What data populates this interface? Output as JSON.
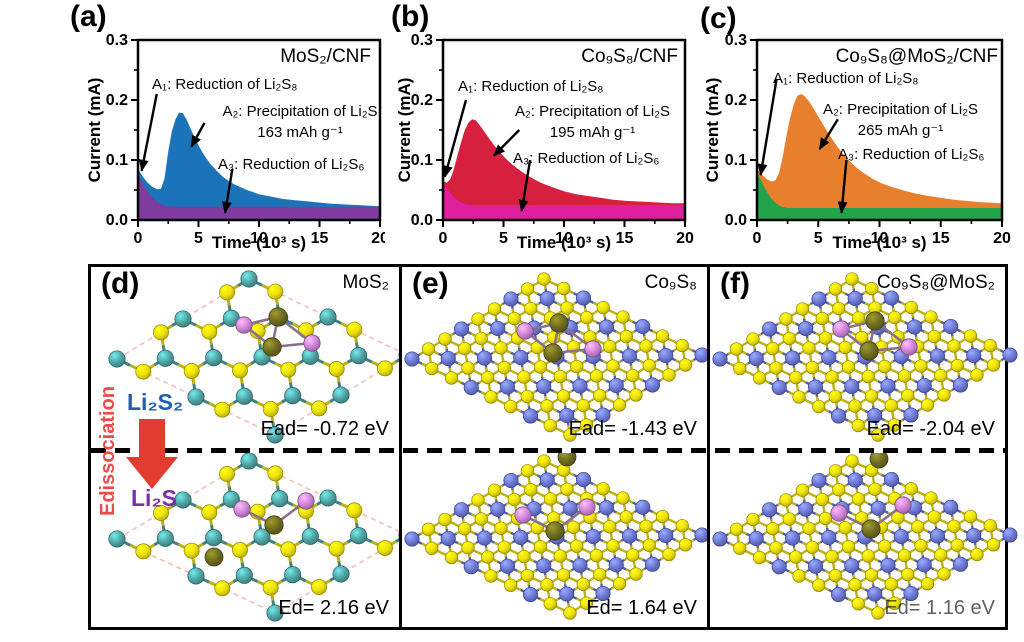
{
  "charts": [
    {
      "letter": "(a)",
      "title": "MoS₂/CNF",
      "ylabel": "Current (mA)",
      "xlabel": "Time (10³ s)",
      "ann_a1": "A₁: Reduction of Li₂S₈",
      "ann_a2": "A₂: Precipitation of Li₂S",
      "capacity": "163 mAh g⁻¹",
      "ann_a3": "A₃: Reduction of Li₂S₆"
    },
    {
      "letter": "(b)",
      "title": "Co₉S₈/CNF",
      "ylabel": "Current (mA)",
      "xlabel": "Time (10³ s)",
      "ann_a1": "A₁: Reduction of Li₂S₈",
      "ann_a2": "A₂: Precipitation of Li₂S",
      "capacity": "195 mAh g⁻¹",
      "ann_a3": "A₃: Reduction of Li₂S₆"
    },
    {
      "letter": "(c)",
      "title": "Co₉S₈@MoS₂/CNF",
      "ylabel": "Current (mA)",
      "xlabel": "Time (10³ s)",
      "ann_a1": "A₁: Reduction of Li₂S₈",
      "ann_a2": "A₂: Precipitation of Li₂S",
      "capacity": "265 mAh g⁻¹",
      "ann_a3": "A₃: Reduction of Li₂S₆"
    }
  ],
  "chart_data": [
    {
      "type": "area",
      "panel": "a",
      "title": "MoS₂/CNF",
      "xlabel": "Time (10³ s)",
      "ylabel": "Current (mA)",
      "xlim": [
        0,
        20
      ],
      "ylim": [
        0,
        0.3
      ],
      "xticks": [
        0,
        5,
        10,
        15,
        20
      ],
      "yticks": [
        0.0,
        0.1,
        0.2,
        0.3
      ],
      "capacity_mAh_g": 163,
      "series": [
        {
          "name": "A2 precipitation of Li2S",
          "color": "#1B73B9",
          "points": [
            [
              0,
              0.085
            ],
            [
              0.4,
              0.072
            ],
            [
              0.8,
              0.062
            ],
            [
              1.2,
              0.055
            ],
            [
              1.6,
              0.051
            ],
            [
              1.9,
              0.052
            ],
            [
              2.2,
              0.07
            ],
            [
              2.5,
              0.115
            ],
            [
              2.8,
              0.148
            ],
            [
              3.1,
              0.168
            ],
            [
              3.4,
              0.179
            ],
            [
              3.7,
              0.178
            ],
            [
              4.0,
              0.168
            ],
            [
              4.4,
              0.15
            ],
            [
              4.8,
              0.132
            ],
            [
              5.2,
              0.117
            ],
            [
              5.6,
              0.104
            ],
            [
              6,
              0.093
            ],
            [
              6.5,
              0.082
            ],
            [
              7,
              0.072
            ],
            [
              7.5,
              0.065
            ],
            [
              8,
              0.059
            ],
            [
              9,
              0.05
            ],
            [
              10,
              0.043
            ],
            [
              11,
              0.039
            ],
            [
              12,
              0.035
            ],
            [
              13,
              0.033
            ],
            [
              14,
              0.031
            ],
            [
              15,
              0.029
            ],
            [
              16,
              0.027
            ],
            [
              17,
              0.026
            ],
            [
              18,
              0.025
            ],
            [
              19,
              0.024
            ],
            [
              20,
              0.023
            ]
          ]
        },
        {
          "name": "A1/A3 reduction of polysulfides",
          "color": "#7D3C9E",
          "points": [
            [
              0,
              0.075
            ],
            [
              0.4,
              0.06
            ],
            [
              0.8,
              0.047
            ],
            [
              1.2,
              0.037
            ],
            [
              1.6,
              0.03
            ],
            [
              2,
              0.025
            ],
            [
              2.4,
              0.023
            ],
            [
              3,
              0.022
            ],
            [
              20,
              0.022
            ]
          ]
        }
      ],
      "arrows": [
        {
          "from": [
            1.55,
            0.21
          ],
          "to": [
            0.3,
            0.082
          ]
        },
        {
          "from": [
            5.5,
            0.162
          ],
          "to": [
            4.4,
            0.122
          ]
        },
        {
          "from": [
            7.8,
            0.085
          ],
          "to": [
            7.2,
            0.012
          ]
        }
      ]
    },
    {
      "type": "area",
      "panel": "b",
      "title": "Co₉S₈/CNF",
      "xlabel": "Time (10³ s)",
      "ylabel": "Current (mA)",
      "xlim": [
        0,
        20
      ],
      "ylim": [
        0,
        0.3
      ],
      "xticks": [
        0,
        5,
        10,
        15,
        20
      ],
      "yticks": [
        0.0,
        0.1,
        0.2,
        0.3
      ],
      "capacity_mAh_g": 195,
      "series": [
        {
          "name": "A2 precipitation of Li2S",
          "color": "#D6203D",
          "points": [
            [
              0,
              0.065
            ],
            [
              0.3,
              0.062
            ],
            [
              0.6,
              0.068
            ],
            [
              0.9,
              0.085
            ],
            [
              1.2,
              0.108
            ],
            [
              1.5,
              0.13
            ],
            [
              1.8,
              0.15
            ],
            [
              2.1,
              0.162
            ],
            [
              2.4,
              0.168
            ],
            [
              2.7,
              0.166
            ],
            [
              3,
              0.159
            ],
            [
              3.4,
              0.148
            ],
            [
              3.8,
              0.136
            ],
            [
              4.2,
              0.125
            ],
            [
              4.7,
              0.113
            ],
            [
              5.2,
              0.102
            ],
            [
              5.8,
              0.091
            ],
            [
              6.4,
              0.082
            ],
            [
              7,
              0.074
            ],
            [
              7.6,
              0.067
            ],
            [
              8.2,
              0.061
            ],
            [
              9,
              0.055
            ],
            [
              10,
              0.048
            ],
            [
              11,
              0.043
            ],
            [
              12,
              0.04
            ],
            [
              13,
              0.037
            ],
            [
              14,
              0.034
            ],
            [
              15,
              0.032
            ],
            [
              16,
              0.031
            ],
            [
              17,
              0.03
            ],
            [
              18,
              0.029
            ],
            [
              19,
              0.028
            ],
            [
              20,
              0.028
            ]
          ]
        },
        {
          "name": "A1/A3 reduction of polysulfides",
          "color": "#DE1F9F",
          "points": [
            [
              0,
              0.062
            ],
            [
              0.4,
              0.05
            ],
            [
              0.8,
              0.04
            ],
            [
              1.2,
              0.033
            ],
            [
              1.6,
              0.028
            ],
            [
              2,
              0.026
            ],
            [
              2.5,
              0.025
            ],
            [
              20,
              0.025
            ]
          ]
        }
      ],
      "arrows": [
        {
          "from": [
            1.9,
            0.2
          ],
          "to": [
            0.15,
            0.072
          ]
        },
        {
          "from": [
            6.3,
            0.15
          ],
          "to": [
            4.2,
            0.107
          ]
        },
        {
          "from": [
            7.2,
            0.1
          ],
          "to": [
            6.5,
            0.015
          ]
        }
      ]
    },
    {
      "type": "area",
      "panel": "c",
      "title": "Co₉S₈@MoS₂/CNF",
      "xlabel": "Time (10³ s)",
      "ylabel": "Current (mA)",
      "xlim": [
        0,
        20
      ],
      "ylim": [
        0,
        0.3
      ],
      "xticks": [
        0,
        5,
        10,
        15,
        20
      ],
      "yticks": [
        0.0,
        0.1,
        0.2,
        0.3
      ],
      "capacity_mAh_g": 265,
      "series": [
        {
          "name": "A2 precipitation of Li2S",
          "color": "#E87F2C",
          "points": [
            [
              0,
              0.085
            ],
            [
              0.4,
              0.076
            ],
            [
              0.8,
              0.068
            ],
            [
              1.2,
              0.064
            ],
            [
              1.5,
              0.066
            ],
            [
              1.8,
              0.078
            ],
            [
              2.1,
              0.105
            ],
            [
              2.4,
              0.14
            ],
            [
              2.7,
              0.17
            ],
            [
              3,
              0.193
            ],
            [
              3.3,
              0.207
            ],
            [
              3.6,
              0.21
            ],
            [
              3.9,
              0.206
            ],
            [
              4.3,
              0.196
            ],
            [
              4.7,
              0.183
            ],
            [
              5.1,
              0.169
            ],
            [
              5.6,
              0.152
            ],
            [
              6.1,
              0.136
            ],
            [
              6.6,
              0.121
            ],
            [
              7.1,
              0.108
            ],
            [
              7.6,
              0.097
            ],
            [
              8.2,
              0.086
            ],
            [
              8.8,
              0.077
            ],
            [
              9.5,
              0.068
            ],
            [
              10.2,
              0.061
            ],
            [
              11,
              0.055
            ],
            [
              12,
              0.049
            ],
            [
              13,
              0.044
            ],
            [
              14,
              0.04
            ],
            [
              15,
              0.037
            ],
            [
              16,
              0.034
            ],
            [
              17,
              0.032
            ],
            [
              18,
              0.03
            ],
            [
              19,
              0.029
            ],
            [
              20,
              0.028
            ]
          ]
        },
        {
          "name": "A1/A3 reduction of polysulfides",
          "color": "#22A34B",
          "points": [
            [
              0,
              0.08
            ],
            [
              0.4,
              0.063
            ],
            [
              0.8,
              0.047
            ],
            [
              1.2,
              0.035
            ],
            [
              1.6,
              0.027
            ],
            [
              2,
              0.022
            ],
            [
              2.5,
              0.02
            ],
            [
              20,
              0.02
            ]
          ]
        }
      ],
      "arrows": [
        {
          "from": [
            1.6,
            0.235
          ],
          "to": [
            0.3,
            0.075
          ]
        },
        {
          "from": [
            6.6,
            0.168
          ],
          "to": [
            5.1,
            0.118
          ]
        },
        {
          "from": [
            7.3,
            0.1
          ],
          "to": [
            6.9,
            0.012
          ]
        }
      ]
    }
  ],
  "dft_panels": [
    {
      "letter": "(d)",
      "formula": "MoS₂",
      "ead": "Ead= -0.72 eV",
      "ed": "Ed= 2.16 eV",
      "lattice": "mos2"
    },
    {
      "letter": "(e)",
      "formula": "Co₉S₈",
      "ead": "Ead= -1.43 eV",
      "ed": "Ed= 1.64 eV",
      "lattice": "co9s8"
    },
    {
      "letter": "(f)",
      "formula": "Co₉S₈@MoS₂",
      "ead": "Ead= -2.04 eV",
      "ed": "Ed= 1.16 eV",
      "lattice": "hetero"
    }
  ],
  "side_labels": {
    "dissociation": "Edissociation",
    "top_species": "Li₂S₂",
    "bottom_species": "Li₂S"
  },
  "atom_colors": {
    "mo": "#4FA3A3",
    "co": "#6B77D4",
    "s": "#EDDF0C",
    "li": "#D083D8",
    "s_adsorbate": "#6E6B20"
  },
  "accent_colors": {
    "arrow_red": "#E23B30",
    "dissociation_red": "#ED4C4C",
    "li2s2_blue": "#1B5FB5",
    "li2s_purple": "#7A2EA8",
    "rhombus_dash": "#F5B5AC"
  }
}
